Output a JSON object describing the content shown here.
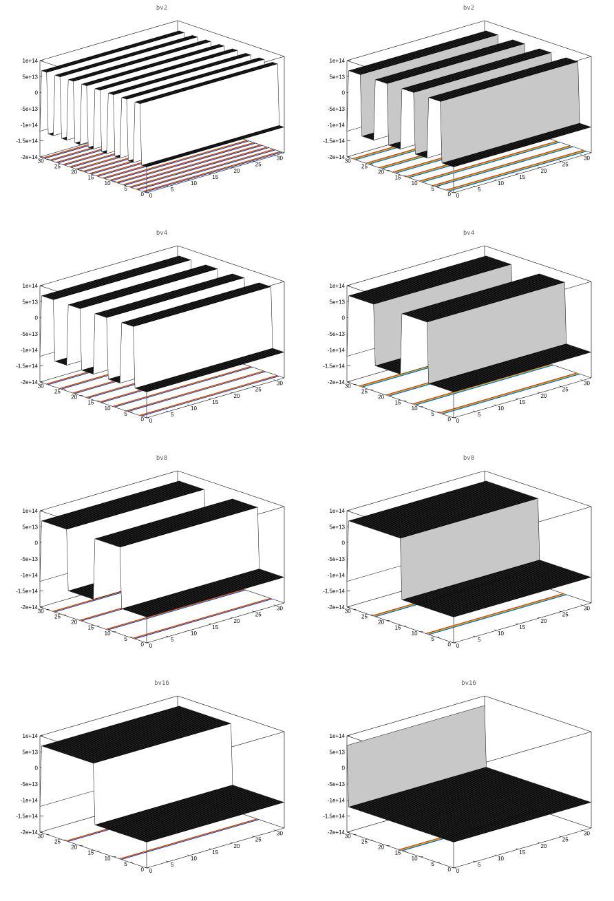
{
  "chart_data": [
    {
      "type": "surface",
      "title": "bv2",
      "period": 4,
      "style": "bw",
      "zlim": [
        -200000000000000.0,
        100000000000000.0
      ],
      "xlim": [
        0,
        32
      ],
      "ylim": [
        0,
        32
      ],
      "z_ticks": [
        "1e+14",
        "5e+13",
        "0",
        "-5e+13",
        "-1e+14",
        "-1.5e+14",
        "-2e+14"
      ],
      "x_ticks": [
        "0",
        "5",
        "10",
        "15",
        "20",
        "25",
        "30"
      ],
      "y_ticks": [
        "0",
        "5",
        "10",
        "15",
        "20",
        "25",
        "30"
      ]
    },
    {
      "type": "surface",
      "title": "bv2",
      "period": 8,
      "style": "color",
      "zlim": [
        -200000000000000.0,
        100000000000000.0
      ],
      "xlim": [
        0,
        32
      ],
      "ylim": [
        0,
        32
      ],
      "z_ticks": [
        "1e+14",
        "5e+13",
        "0",
        "-5e+13",
        "-1e+14",
        "-1.5e+14",
        "-2e+14"
      ],
      "x_ticks": [
        "0",
        "5",
        "10",
        "15",
        "20",
        "25",
        "30"
      ],
      "y_ticks": [
        "0",
        "5",
        "10",
        "15",
        "20",
        "25",
        "30"
      ]
    },
    {
      "type": "surface",
      "title": "bv4",
      "period": 8,
      "style": "bw",
      "zlim": [
        -200000000000000.0,
        100000000000000.0
      ],
      "xlim": [
        0,
        32
      ],
      "ylim": [
        0,
        32
      ],
      "z_ticks": [
        "1e+14",
        "5e+13",
        "0",
        "-5e+13",
        "-1e+14",
        "-1.5e+14",
        "-2e+14"
      ],
      "x_ticks": [
        "0",
        "5",
        "10",
        "15",
        "20",
        "25",
        "30"
      ],
      "y_ticks": [
        "0",
        "5",
        "10",
        "15",
        "20",
        "25",
        "30"
      ]
    },
    {
      "type": "surface",
      "title": "bv4",
      "period": 16,
      "style": "color",
      "zlim": [
        -200000000000000.0,
        100000000000000.0
      ],
      "xlim": [
        0,
        32
      ],
      "ylim": [
        0,
        32
      ],
      "z_ticks": [
        "1e+14",
        "5e+13",
        "0",
        "-5e+13",
        "-1e+14",
        "-1.5e+14",
        "-2e+14"
      ],
      "x_ticks": [
        "0",
        "5",
        "10",
        "15",
        "20",
        "25",
        "30"
      ],
      "y_ticks": [
        "0",
        "5",
        "10",
        "15",
        "20",
        "25",
        "30"
      ]
    },
    {
      "type": "surface",
      "title": "bv8",
      "period": 16,
      "style": "bw",
      "zlim": [
        -200000000000000.0,
        100000000000000.0
      ],
      "xlim": [
        0,
        32
      ],
      "ylim": [
        0,
        32
      ],
      "z_ticks": [
        "1e+14",
        "5e+13",
        "0",
        "-5e+13",
        "-1e+14",
        "-1.5e+14",
        "-2e+14"
      ],
      "x_ticks": [
        "0",
        "5",
        "10",
        "15",
        "20",
        "25",
        "30"
      ],
      "y_ticks": [
        "0",
        "5",
        "10",
        "15",
        "20",
        "25",
        "30"
      ]
    },
    {
      "type": "surface",
      "title": "bv8",
      "period": 32,
      "style": "color",
      "zlim": [
        -200000000000000.0,
        100000000000000.0
      ],
      "xlim": [
        0,
        32
      ],
      "ylim": [
        0,
        32
      ],
      "z_ticks": [
        "1e+14",
        "5e+13",
        "0",
        "-5e+13",
        "-1e+14",
        "-1.5e+14",
        "-2e+14"
      ],
      "x_ticks": [
        "0",
        "5",
        "10",
        "15",
        "20",
        "25",
        "30"
      ],
      "y_ticks": [
        "0",
        "5",
        "10",
        "15",
        "20",
        "25",
        "30"
      ]
    },
    {
      "type": "surface",
      "title": "bv16",
      "period": 32,
      "style": "bw",
      "zlim": [
        -200000000000000.0,
        100000000000000.0
      ],
      "xlim": [
        0,
        32
      ],
      "ylim": [
        0,
        32
      ],
      "z_ticks": [
        "1e+14",
        "5e+13",
        "0",
        "-5e+13",
        "-1e+14",
        "-1.5e+14",
        "-2e+14"
      ],
      "x_ticks": [
        "0",
        "5",
        "10",
        "15",
        "20",
        "25",
        "30"
      ],
      "y_ticks": [
        "0",
        "5",
        "10",
        "15",
        "20",
        "25",
        "30"
      ]
    },
    {
      "type": "surface",
      "title": "bv16",
      "period": 64,
      "style": "color",
      "zlim": [
        -200000000000000.0,
        100000000000000.0
      ],
      "xlim": [
        0,
        32
      ],
      "ylim": [
        0,
        32
      ],
      "z_ticks": [
        "1e+14",
        "5e+13",
        "0",
        "-5e+13",
        "-1e+14",
        "-1.5e+14",
        "-2e+14"
      ],
      "x_ticks": [
        "0",
        "5",
        "10",
        "15",
        "20",
        "25",
        "30"
      ],
      "y_ticks": [
        "0",
        "5",
        "10",
        "15",
        "20",
        "25",
        "30"
      ]
    }
  ],
  "colors": {
    "surface_top": "#000000",
    "surface_side_bw": "#ffffff",
    "surface_side_color": "#c8c8c8",
    "contour": [
      "#0000c8",
      "#00a0ff",
      "#40c8a0",
      "#c8c800",
      "#ff8c00",
      "#d03000"
    ]
  }
}
